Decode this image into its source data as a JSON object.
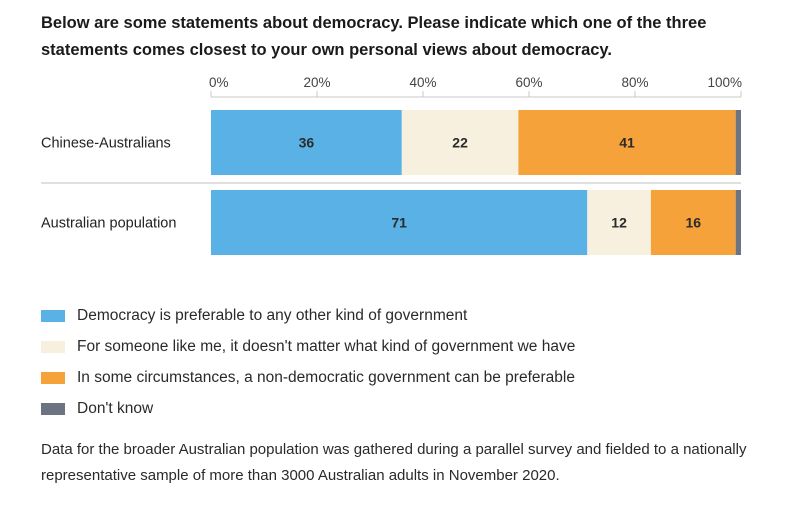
{
  "title": "Below are some statements about democracy. Please indicate which one of the three statements comes closest to your own personal views about democracy.",
  "colors": {
    "preferable": "#5ab1e6",
    "doesnt_matter": "#f8f0de",
    "non_democratic": "#f5a23a",
    "dont_know": "#6b7480"
  },
  "chart_data": {
    "type": "bar",
    "orientation": "horizontal",
    "stacked": true,
    "categories": [
      "Chinese-Australians",
      "Australian population"
    ],
    "x_ticks": [
      "0%",
      "20%",
      "40%",
      "60%",
      "80%",
      "100%"
    ],
    "xlim": [
      0,
      100
    ],
    "series": [
      {
        "name": "Democracy is preferable to any other kind of government",
        "values": [
          36,
          71
        ],
        "labels": [
          "36",
          "71"
        ],
        "color": "#5ab1e6"
      },
      {
        "name": "For someone like me, it doesn't matter what kind of government we have",
        "values": [
          22,
          12
        ],
        "labels": [
          "22",
          "12"
        ],
        "color": "#f8f0de"
      },
      {
        "name": "In some circumstances, a non-democratic government can be preferable",
        "values": [
          41,
          16
        ],
        "labels": [
          "41",
          "16"
        ],
        "color": "#f5a23a"
      },
      {
        "name": "Don't know",
        "values": [
          1,
          1
        ],
        "labels": [
          "",
          ""
        ],
        "color": "#6b7480"
      }
    ],
    "legend": "bottom"
  },
  "note": "Data for the broader Australian population was gathered during a parallel survey and fielded to a nationally representative sample of more than 3000 Australian adults in November 2020."
}
